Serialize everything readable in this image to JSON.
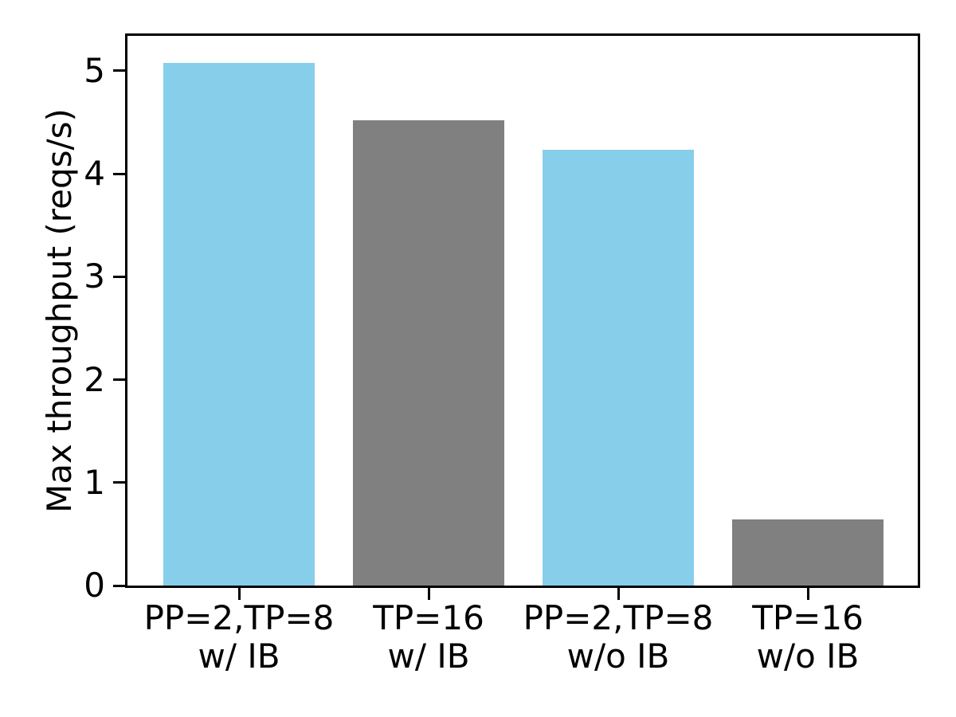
{
  "chart_data": {
    "type": "bar",
    "title": "",
    "xlabel": "",
    "ylabel": "Max throughput (reqs/s)",
    "categories": [
      "PP=2,TP=8\nw/ IB",
      "TP=16\nw/ IB",
      "PP=2,TP=8\nw/o IB",
      "TP=16\nw/o IB"
    ],
    "values": [
      5.08,
      4.52,
      4.23,
      0.64
    ],
    "bar_colors": [
      "#87CEEB",
      "#808080",
      "#87CEEB",
      "#808080"
    ],
    "y_ticks": [
      0,
      1,
      2,
      3,
      4,
      5
    ],
    "ylim": [
      0,
      5.34
    ],
    "grid": false,
    "legend_position": "none"
  },
  "colors": {
    "axis": "#000000",
    "background": "#FFFFFF",
    "bar_blue": "#87CEEB",
    "bar_gray": "#808080"
  }
}
